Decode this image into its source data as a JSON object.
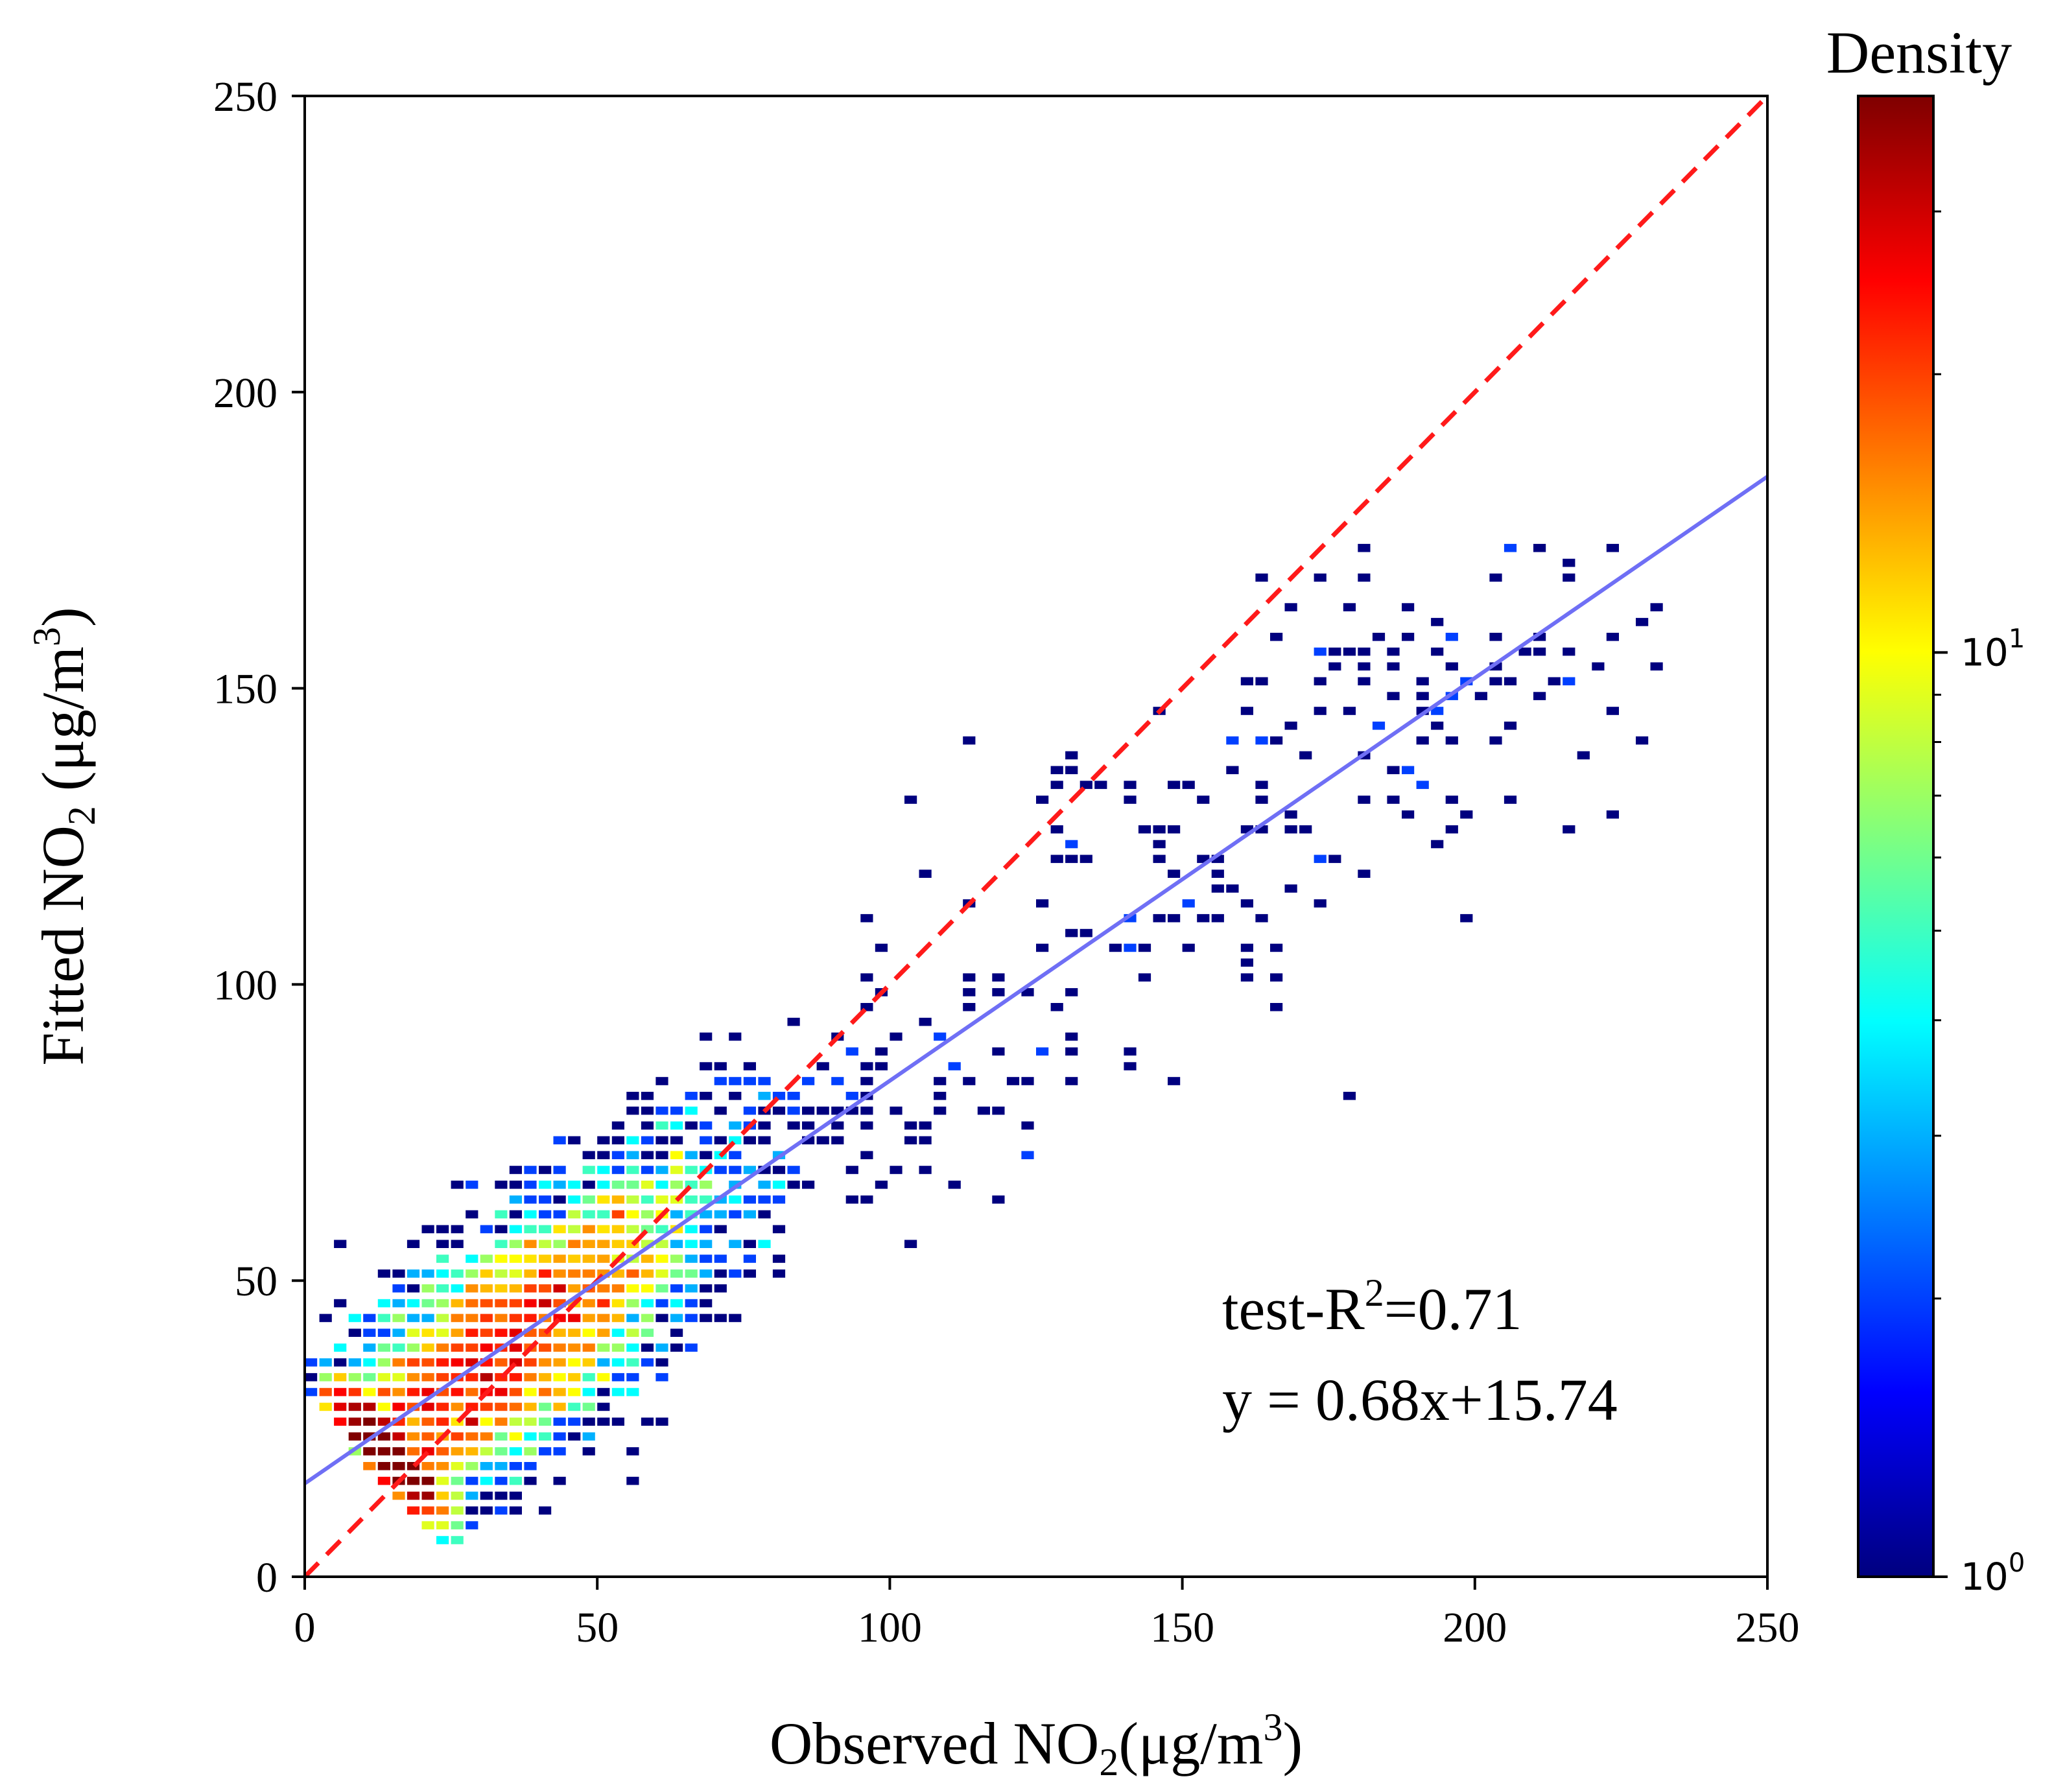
{
  "chart_data": {
    "type": "heatmap",
    "subtype": "density scatter with regression",
    "xlabel": "Observed NO2(μg/m3)",
    "ylabel": "Fitted NO2 (μg/m3)",
    "xlabel_parts": {
      "prefix": "Observed NO",
      "sub": "2",
      "mid": "(μg/m",
      "sup": "3",
      "suffix": ")"
    },
    "ylabel_parts": {
      "prefix": "Fitted NO",
      "sub": "2",
      "mid": " (μg/m",
      "sup": "3",
      "suffix": ")"
    },
    "xlim": [
      0,
      250
    ],
    "ylim": [
      0,
      250
    ],
    "xticks": [
      0,
      50,
      100,
      150,
      200,
      250
    ],
    "yticks": [
      0,
      50,
      100,
      150,
      200,
      250
    ],
    "xtick_labels": [
      "0",
      "50",
      "100",
      "150",
      "200",
      "250"
    ],
    "ytick_labels": [
      "0",
      "50",
      "100",
      "150",
      "200",
      "250"
    ],
    "one_to_one_line": {
      "style": "dashed",
      "color": "#ff1a1a",
      "from": [
        0,
        0
      ],
      "to": [
        250,
        250
      ]
    },
    "fit_line": {
      "color": "#6f6ff5",
      "slope": 0.68,
      "intercept": 15.74,
      "from_x": 0,
      "to_x": 250
    },
    "annotations": {
      "r2": {
        "prefix": "test-R",
        "sup": "2",
        "suffix": "=0.71"
      },
      "equation": "y = 0.68x+15.74"
    },
    "density": {
      "model": "bivariate normal along fit, log color scale",
      "center_x": 27,
      "center_y": 32,
      "major_axis_slope_deg": 40,
      "observed_x_range": [
        0,
        238
      ],
      "observed_y_range": [
        5,
        178
      ],
      "bin_size": 2.5,
      "peak_density_approx": 40
    },
    "colorbar": {
      "title": "Density",
      "scale": "log",
      "range": [
        1,
        40
      ],
      "ticks": [
        {
          "value": 1,
          "base": "10",
          "exp": "0"
        },
        {
          "value": 10,
          "base": "10",
          "exp": "1"
        }
      ],
      "colormap": [
        "#00007f",
        "#0000ff",
        "#007fff",
        "#00ffff",
        "#7fff7f",
        "#ffff00",
        "#ff7f00",
        "#ff0000",
        "#7f0000"
      ]
    }
  }
}
